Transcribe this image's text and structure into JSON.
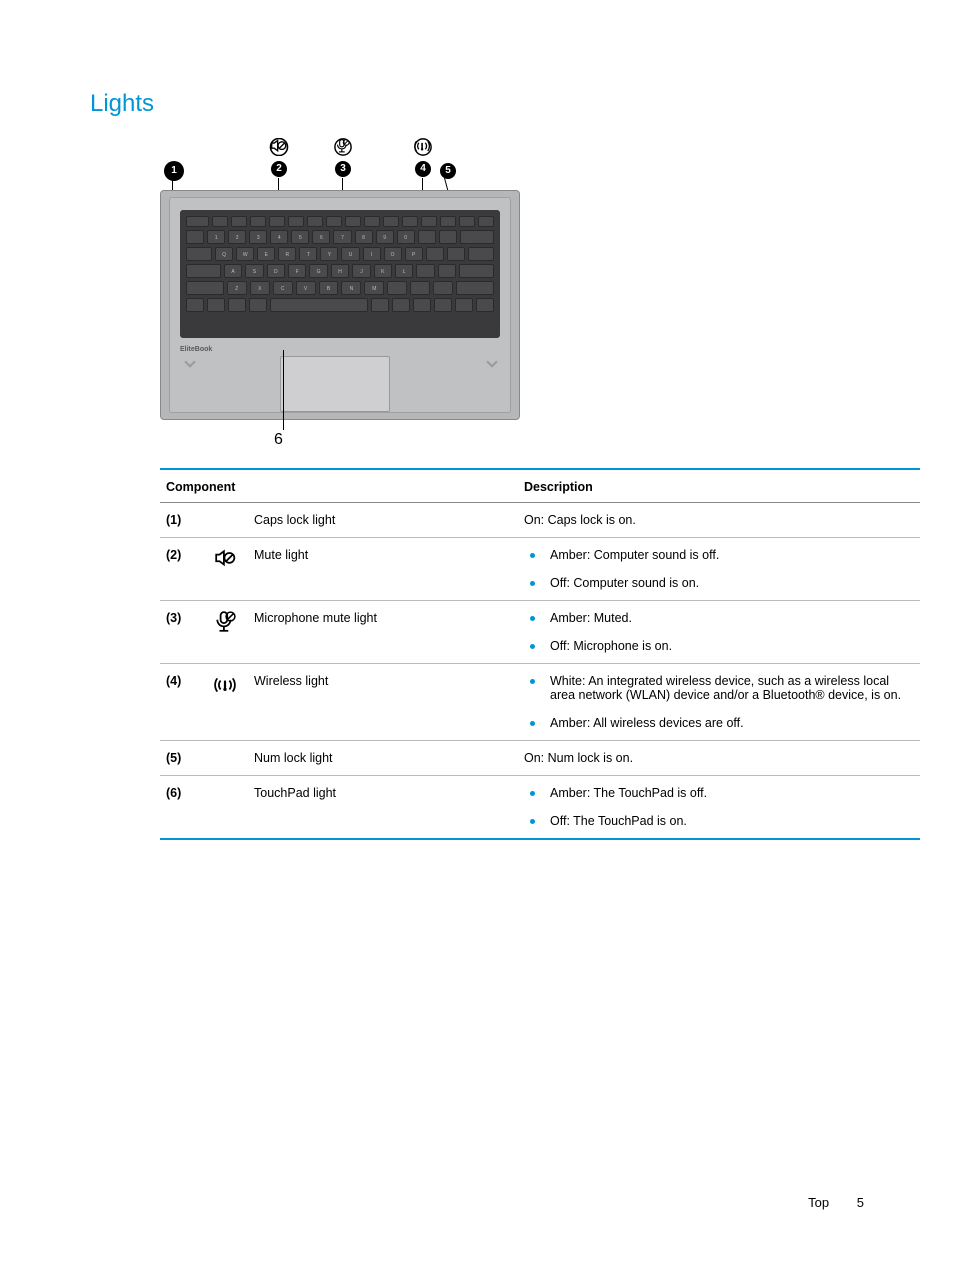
{
  "section_title": "Lights",
  "brand_label": "EliteBook",
  "callouts": [
    {
      "n": "1",
      "icon": null
    },
    {
      "n": "2",
      "icon": "speaker-mute"
    },
    {
      "n": "3",
      "icon": "mic-mute"
    },
    {
      "n": "4",
      "icon": "wireless"
    },
    {
      "n": "5",
      "icon": null
    },
    {
      "n": "6",
      "icon": null
    }
  ],
  "table": {
    "head": {
      "component": "Component",
      "description": "Description"
    },
    "rows": [
      {
        "num": "(1)",
        "icon": null,
        "component": "Caps lock light",
        "desc_plain": "On: Caps lock is on."
      },
      {
        "num": "(2)",
        "icon": "speaker-mute",
        "component": "Mute light",
        "desc_list": [
          "Amber: Computer sound is off.",
          "Off: Computer sound is on."
        ]
      },
      {
        "num": "(3)",
        "icon": "mic-mute",
        "component": "Microphone mute light",
        "desc_list": [
          "Amber: Muted.",
          "Off: Microphone is on."
        ]
      },
      {
        "num": "(4)",
        "icon": "wireless",
        "component": "Wireless light",
        "desc_list": [
          "White: An integrated wireless device, such as a wireless local area network (WLAN) device and/or a Bluetooth® device, is on.",
          "Amber: All wireless devices are off."
        ]
      },
      {
        "num": "(5)",
        "icon": null,
        "component": "Num lock light",
        "desc_plain": "On: Num lock is on."
      },
      {
        "num": "(6)",
        "icon": null,
        "component": "TouchPad light",
        "desc_list": [
          "Amber: The TouchPad is off.",
          "Off: The TouchPad is on."
        ]
      }
    ]
  },
  "footer": {
    "section": "Top",
    "page": "5"
  },
  "colors": {
    "accent": "#0096d6",
    "text": "#000000",
    "rule": "#bbbbbb",
    "kb_shell": "#3a3a3d",
    "kb_key": "#4a4a4d",
    "laptop_body": "#b6b7b9"
  }
}
